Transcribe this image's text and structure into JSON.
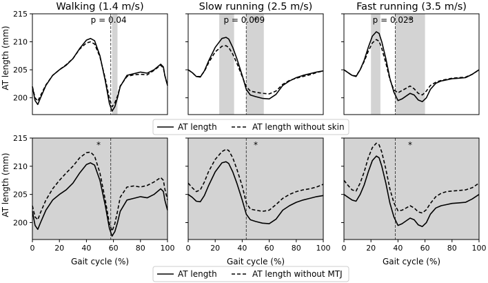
{
  "figure": {
    "y_axis_label": "AT length (mm)",
    "x_axis_label": "Gait cycle (%)",
    "legend_top": [
      "AT length",
      "AT length without skin"
    ],
    "legend_bottom": [
      "AT length",
      "AT length without MTJ"
    ]
  },
  "chart_data": [
    {
      "type": "line",
      "title": "Walking (1.4 m/s)",
      "annotation": "p = 0.04",
      "xlim": [
        0,
        100
      ],
      "ylim": [
        197,
        215
      ],
      "yticks": [
        200,
        205,
        210,
        215
      ],
      "xticks": [],
      "vline": 58,
      "shaded": [
        [
          59,
          63
        ]
      ],
      "stars": [],
      "series": [
        {
          "name": "AT length",
          "style": "solid",
          "x": [
            0,
            2,
            4,
            6,
            10,
            15,
            20,
            25,
            30,
            35,
            40,
            43,
            46,
            50,
            54,
            57,
            59,
            61,
            63,
            65,
            70,
            75,
            80,
            85,
            90,
            95,
            97,
            98,
            100
          ],
          "values": [
            202,
            199.5,
            198.8,
            200,
            202.2,
            204,
            205,
            205.8,
            207,
            208.8,
            210.3,
            210.6,
            210.2,
            207.5,
            203,
            199,
            197.6,
            198.4,
            200,
            202,
            204,
            204.3,
            204.6,
            204.4,
            205,
            206,
            205.5,
            204,
            202.2
          ]
        },
        {
          "name": "AT length without skin",
          "style": "dashed",
          "x": [
            0,
            2,
            4,
            6,
            10,
            15,
            20,
            25,
            30,
            35,
            40,
            43,
            46,
            50,
            54,
            57,
            59,
            61,
            63,
            65,
            70,
            75,
            80,
            85,
            90,
            95,
            97,
            98,
            100
          ],
          "values": [
            202,
            200,
            199.4,
            200.4,
            202.3,
            204,
            205,
            205.9,
            207,
            208.7,
            209.8,
            210,
            209.6,
            207.3,
            203.4,
            199.9,
            198.4,
            199.1,
            200.3,
            202.1,
            203.8,
            204.1,
            204.2,
            204.1,
            204.9,
            205.8,
            205.3,
            204,
            202.2
          ]
        }
      ]
    },
    {
      "type": "line",
      "title": "Slow running (2.5 m/s)",
      "annotation": "p = 0.009",
      "xlim": [
        0,
        100
      ],
      "ylim": [
        197,
        215
      ],
      "yticks": [
        200,
        205,
        210,
        215
      ],
      "xticks": [],
      "vline": 43,
      "shaded": [
        [
          23,
          34
        ],
        [
          43,
          56
        ]
      ],
      "stars": [
        {
          "x": 50,
          "y": 213.8
        }
      ],
      "series": [
        {
          "name": "AT length",
          "style": "solid",
          "x": [
            0,
            3,
            6,
            9,
            12,
            15,
            20,
            25,
            28,
            30,
            33,
            36,
            40,
            43,
            46,
            50,
            55,
            60,
            65,
            70,
            75,
            80,
            85,
            90,
            95,
            100
          ],
          "values": [
            205,
            204.5,
            203.8,
            203.7,
            204.8,
            206.5,
            209,
            210.6,
            210.8,
            210.5,
            209,
            207,
            204,
            201.5,
            200.5,
            200.2,
            199.9,
            199.8,
            200.6,
            202.2,
            203,
            203.6,
            204,
            204.3,
            204.6,
            204.8
          ]
        },
        {
          "name": "AT length without skin",
          "style": "dashed",
          "x": [
            0,
            3,
            6,
            9,
            12,
            15,
            20,
            25,
            28,
            30,
            33,
            36,
            40,
            43,
            46,
            50,
            55,
            60,
            65,
            70,
            75,
            80,
            85,
            90,
            95,
            100
          ],
          "values": [
            205,
            204.5,
            203.8,
            203.8,
            204.7,
            206.2,
            208.2,
            209.2,
            209.3,
            209,
            207.8,
            206.2,
            203.8,
            202,
            201.2,
            201,
            200.8,
            200.7,
            201.2,
            202.4,
            203.1,
            203.5,
            203.8,
            204.1,
            204.5,
            204.8
          ]
        }
      ]
    },
    {
      "type": "line",
      "title": "Fast running (3.5 m/s)",
      "annotation": "p = 0.023",
      "xlim": [
        0,
        100
      ],
      "ylim": [
        197,
        215
      ],
      "yticks": [
        200,
        205,
        210,
        215
      ],
      "xticks": [],
      "vline": 38,
      "shaded": [
        [
          20,
          27
        ],
        [
          38,
          60
        ]
      ],
      "stars": [
        {
          "x": 49,
          "y": 213.8
        }
      ],
      "series": [
        {
          "name": "AT length",
          "style": "solid",
          "x": [
            0,
            3,
            6,
            9,
            12,
            15,
            18,
            21,
            24,
            26,
            28,
            31,
            34,
            37,
            40,
            43,
            46,
            49,
            52,
            55,
            58,
            61,
            64,
            68,
            72,
            76,
            80,
            85,
            90,
            95,
            100
          ],
          "values": [
            205,
            204.5,
            204,
            203.8,
            205,
            206.7,
            209,
            211,
            211.8,
            211.5,
            210,
            207,
            203.5,
            201,
            199.5,
            199.8,
            200.3,
            200.8,
            200.5,
            199.6,
            199.3,
            200,
            201.5,
            202.6,
            203,
            203.2,
            203.4,
            203.5,
            203.6,
            204.2,
            205
          ]
        },
        {
          "name": "AT length without skin",
          "style": "dashed",
          "x": [
            0,
            3,
            6,
            9,
            12,
            15,
            18,
            21,
            24,
            26,
            28,
            31,
            34,
            37,
            40,
            43,
            46,
            49,
            52,
            55,
            58,
            61,
            64,
            68,
            72,
            76,
            80,
            85,
            90,
            95,
            100
          ],
          "values": [
            205,
            204.5,
            204,
            203.9,
            205,
            206.5,
            208.3,
            209.8,
            210.4,
            210.1,
            208.8,
            206.2,
            203.3,
            201.4,
            200.9,
            201.3,
            201.7,
            202.1,
            201.6,
            200.8,
            200.5,
            201.2,
            202.2,
            202.8,
            203.1,
            203.3,
            203.5,
            203.6,
            203.7,
            204.2,
            205
          ]
        }
      ]
    },
    {
      "type": "line",
      "title": "",
      "annotation": "",
      "xlim": [
        0,
        100
      ],
      "ylim": [
        197,
        215
      ],
      "yticks": [
        200,
        205,
        210,
        215
      ],
      "xticks": [
        0,
        20,
        40,
        60,
        80,
        100
      ],
      "vline": 58,
      "shaded": [
        [
          0,
          100
        ]
      ],
      "stars": [
        {
          "x": 49,
          "y": 213.8
        }
      ],
      "series": [
        {
          "name": "AT length",
          "style": "solid",
          "x": [
            0,
            2,
            4,
            6,
            10,
            15,
            20,
            25,
            30,
            35,
            40,
            43,
            46,
            50,
            54,
            57,
            59,
            61,
            63,
            65,
            70,
            75,
            80,
            85,
            90,
            95,
            97,
            98,
            100
          ],
          "values": [
            202,
            199.5,
            198.8,
            200,
            202.2,
            204,
            205,
            205.8,
            207,
            208.8,
            210.3,
            210.6,
            210.2,
            207.5,
            203,
            199,
            197.6,
            198.4,
            200,
            202,
            204,
            204.3,
            204.6,
            204.4,
            205,
            206,
            205.5,
            204,
            202.2
          ]
        },
        {
          "name": "AT length without MTJ",
          "style": "dashed",
          "x": [
            0,
            2,
            4,
            6,
            10,
            15,
            20,
            25,
            30,
            35,
            40,
            43,
            46,
            50,
            54,
            57,
            59,
            61,
            63,
            65,
            70,
            75,
            80,
            85,
            90,
            95,
            97,
            98,
            100
          ],
          "values": [
            203,
            201,
            200.5,
            201.8,
            204,
            206,
            207.5,
            208.8,
            210,
            211.5,
            212.4,
            212.5,
            211.8,
            208.8,
            204,
            199.8,
            198.5,
            199.8,
            202,
            204.5,
            206.3,
            206.5,
            206.3,
            206.6,
            207.2,
            208,
            207.5,
            206,
            204
          ]
        }
      ]
    },
    {
      "type": "line",
      "title": "",
      "annotation": "",
      "xlim": [
        0,
        100
      ],
      "ylim": [
        197,
        215
      ],
      "yticks": [
        200,
        205,
        210,
        215
      ],
      "xticks": [
        0,
        20,
        40,
        60,
        80,
        100
      ],
      "vline": 43,
      "shaded": [
        [
          0,
          100
        ]
      ],
      "stars": [
        {
          "x": 50,
          "y": 213.8
        }
      ],
      "series": [
        {
          "name": "AT length",
          "style": "solid",
          "x": [
            0,
            3,
            6,
            9,
            12,
            15,
            20,
            25,
            28,
            30,
            33,
            36,
            40,
            43,
            46,
            50,
            55,
            60,
            65,
            70,
            75,
            80,
            85,
            90,
            95,
            100
          ],
          "values": [
            205,
            204.5,
            203.8,
            203.7,
            204.8,
            206.5,
            209,
            210.6,
            210.8,
            210.5,
            209,
            207,
            204,
            201.5,
            200.5,
            200.2,
            199.9,
            199.8,
            200.6,
            202.2,
            203,
            203.6,
            204,
            204.3,
            204.6,
            204.8
          ]
        },
        {
          "name": "AT length without MTJ",
          "style": "dashed",
          "x": [
            0,
            3,
            6,
            9,
            12,
            15,
            20,
            25,
            28,
            30,
            33,
            36,
            40,
            43,
            46,
            50,
            55,
            60,
            65,
            70,
            75,
            80,
            85,
            90,
            95,
            100
          ],
          "values": [
            207,
            206.2,
            205.5,
            205.8,
            207.2,
            209,
            211.2,
            212.6,
            213,
            212.8,
            211.5,
            209.5,
            206.5,
            203.5,
            202.4,
            202.2,
            202,
            202.2,
            203.2,
            204.3,
            205,
            205.5,
            205.8,
            206,
            206.3,
            206.8
          ]
        }
      ]
    },
    {
      "type": "line",
      "title": "",
      "annotation": "",
      "xlim": [
        0,
        100
      ],
      "ylim": [
        197,
        215
      ],
      "yticks": [
        200,
        205,
        210,
        215
      ],
      "xticks": [
        0,
        20,
        40,
        60,
        80,
        100
      ],
      "vline": 38,
      "shaded": [
        [
          0,
          100
        ]
      ],
      "stars": [
        {
          "x": 49,
          "y": 213.8
        }
      ],
      "series": [
        {
          "name": "AT length",
          "style": "solid",
          "x": [
            0,
            3,
            6,
            9,
            12,
            15,
            18,
            21,
            24,
            26,
            28,
            31,
            34,
            37,
            40,
            43,
            46,
            49,
            52,
            55,
            58,
            61,
            64,
            68,
            72,
            76,
            80,
            85,
            90,
            95,
            100
          ],
          "values": [
            205,
            204.5,
            204,
            203.8,
            205,
            206.7,
            209,
            211,
            211.8,
            211.5,
            210,
            207,
            203.5,
            201,
            199.5,
            199.8,
            200.3,
            200.8,
            200.5,
            199.6,
            199.3,
            200,
            201.5,
            202.6,
            203,
            203.2,
            203.4,
            203.5,
            203.6,
            204.2,
            205
          ]
        },
        {
          "name": "AT length without MTJ",
          "style": "dashed",
          "x": [
            0,
            3,
            6,
            9,
            12,
            15,
            18,
            21,
            24,
            26,
            28,
            31,
            34,
            37,
            40,
            43,
            46,
            49,
            52,
            55,
            58,
            61,
            64,
            68,
            72,
            76,
            80,
            85,
            90,
            95,
            100
          ],
          "values": [
            207.5,
            206.6,
            205.8,
            205.6,
            207,
            209,
            211.5,
            213.3,
            214.1,
            213.8,
            212.5,
            209.5,
            206,
            203.5,
            202.1,
            202.2,
            202.6,
            203,
            202.6,
            201.9,
            201.7,
            202.3,
            203.4,
            204.6,
            205.2,
            205.5,
            205.6,
            205.7,
            205.8,
            206.2,
            207
          ]
        }
      ]
    }
  ]
}
